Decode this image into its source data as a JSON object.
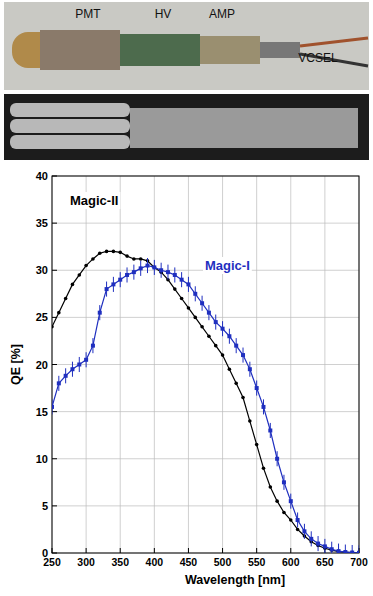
{
  "photo_labels": [
    "PMT",
    "HV",
    "AMP",
    "VCSEL"
  ],
  "chart_data": {
    "type": "line",
    "x_label": "Wavelength [nm]",
    "y_label": "QE [%]",
    "x": [
      250,
      260,
      270,
      280,
      290,
      300,
      310,
      320,
      330,
      340,
      350,
      360,
      370,
      380,
      390,
      400,
      410,
      420,
      430,
      440,
      450,
      460,
      470,
      480,
      490,
      500,
      510,
      520,
      530,
      540,
      550,
      560,
      570,
      580,
      590,
      600,
      610,
      620,
      630,
      640,
      650,
      660,
      670,
      680,
      690,
      700
    ],
    "series": [
      {
        "name": "Magic-II",
        "color": "#000000",
        "marker": "circle",
        "line_style": "solid",
        "values": [
          24,
          25.5,
          27,
          28.5,
          29.5,
          30.5,
          31.2,
          31.8,
          32,
          32,
          31.9,
          31.5,
          31.2,
          31.2,
          31,
          30.3,
          29.8,
          29,
          28,
          27,
          26,
          25,
          24,
          23,
          22,
          21,
          19.5,
          18,
          16.5,
          14,
          11.5,
          9,
          7,
          5.5,
          4.3,
          3.5,
          2.5,
          1.8,
          1.2,
          0.8,
          0.5,
          0.3,
          0.15,
          0.1,
          0.05,
          0
        ]
      },
      {
        "name": "Magic-I",
        "color": "#1f2fbf",
        "marker": "square",
        "line_style": "solid",
        "values": [
          15.5,
          18,
          18.8,
          19.5,
          20,
          20.5,
          22,
          25.5,
          28,
          28.5,
          29,
          29.5,
          29.8,
          30.2,
          30.5,
          30.3,
          30,
          29.8,
          29.5,
          29,
          28.5,
          27.5,
          26.5,
          25.5,
          24.5,
          23.8,
          23,
          22,
          21,
          19.5,
          17.5,
          15.5,
          13,
          10,
          7.5,
          5.5,
          3.5,
          2.3,
          1.5,
          1,
          0.7,
          0.4,
          0.2,
          0.1,
          0.05,
          0.02
        ],
        "errors": [
          0.8,
          0.8,
          0.8,
          0.8,
          0.8,
          0.8,
          0.8,
          0.8,
          0.8,
          0.8,
          0.8,
          0.8,
          0.8,
          0.8,
          0.8,
          0.8,
          0.8,
          0.8,
          0.8,
          0.8,
          0.8,
          0.8,
          0.8,
          0.8,
          0.8,
          0.8,
          0.8,
          0.8,
          0.8,
          0.8,
          0.8,
          0.8,
          0.8,
          0.8,
          0.8,
          0.8,
          0.8,
          0.8,
          0.8,
          0.8,
          0.8,
          0.8,
          0.8,
          0.8,
          0.8,
          0.8
        ]
      }
    ],
    "xlim": [
      250,
      700
    ],
    "xticks": [
      250,
      300,
      350,
      400,
      450,
      500,
      550,
      600,
      650,
      700
    ],
    "ylim": [
      0,
      40
    ],
    "yticks": [
      0,
      5,
      10,
      15,
      20,
      25,
      30,
      35,
      40
    ],
    "grid": true
  }
}
